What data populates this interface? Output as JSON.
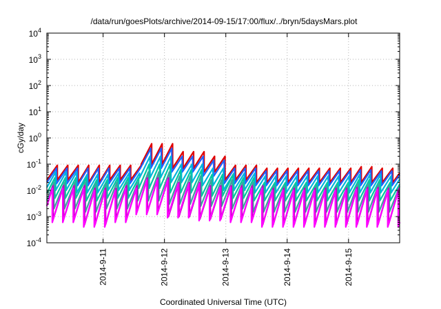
{
  "chart_data": {
    "type": "line",
    "title": "/data/run/goesPlots/archive/2014-09-15/17:00/flux/../bryn/5daysMars.plot",
    "xlabel": "Coordinated Universal Time (UTC)",
    "ylabel": "cGy/day",
    "yscale": "log",
    "grid": true,
    "legend": "none",
    "xlim": [
      "2014-09-10 02:00",
      "2014-09-15 20:00"
    ],
    "ylim": [
      0.0001,
      10000
    ],
    "y_ticks": [
      {
        "base": "10",
        "exp": "-4"
      },
      {
        "base": "10",
        "exp": "-3"
      },
      {
        "base": "10",
        "exp": "-2"
      },
      {
        "base": "10",
        "exp": "-1"
      },
      {
        "base": "10",
        "exp": "0"
      },
      {
        "base": "10",
        "exp": "1"
      },
      {
        "base": "10",
        "exp": "2"
      },
      {
        "base": "10",
        "exp": "3"
      },
      {
        "base": "10",
        "exp": "4"
      }
    ],
    "x_ticks": [
      "2014-9-11",
      "2014-9-12",
      "2014-9-13",
      "2014-9-14",
      "2014-9-15"
    ],
    "sawtooth_period_hours": 4.1,
    "series": [
      {
        "color": "#e00000",
        "peaks": [
          0.09,
          0.09,
          0.09,
          0.6,
          0.3,
          0.2,
          0.09,
          0.07,
          0.07,
          0.07,
          0.08,
          0.07
        ],
        "troughs": [
          0.025,
          0.02,
          0.025,
          0.1,
          0.07,
          0.05,
          0.025,
          0.02,
          0.02,
          0.02,
          0.02,
          0.02
        ]
      },
      {
        "color": "#2060ff",
        "peaks": [
          0.07,
          0.07,
          0.07,
          0.4,
          0.2,
          0.14,
          0.07,
          0.055,
          0.055,
          0.055,
          0.06,
          0.055
        ],
        "troughs": [
          0.018,
          0.015,
          0.018,
          0.07,
          0.05,
          0.035,
          0.018,
          0.015,
          0.015,
          0.015,
          0.015,
          0.015
        ]
      },
      {
        "color": "#00b4dc",
        "peaks": [
          0.05,
          0.04,
          0.045,
          0.2,
          0.1,
          0.07,
          0.045,
          0.035,
          0.035,
          0.035,
          0.04,
          0.035
        ],
        "troughs": [
          0.01,
          0.008,
          0.01,
          0.03,
          0.02,
          0.015,
          0.01,
          0.008,
          0.008,
          0.008,
          0.008,
          0.008
        ]
      },
      {
        "color": "#00c8a0",
        "peaks": [
          0.03,
          0.025,
          0.03,
          0.1,
          0.06,
          0.04,
          0.03,
          0.02,
          0.02,
          0.02,
          0.025,
          0.02
        ],
        "troughs": [
          0.005,
          0.004,
          0.005,
          0.012,
          0.008,
          0.006,
          0.005,
          0.004,
          0.004,
          0.004,
          0.004,
          0.004
        ]
      },
      {
        "color": "#40a0a0",
        "peaks": [
          0.02,
          0.018,
          0.02,
          0.05,
          0.035,
          0.025,
          0.02,
          0.015,
          0.015,
          0.015,
          0.018,
          0.015
        ],
        "troughs": [
          0.002,
          0.0015,
          0.002,
          0.004,
          0.003,
          0.0025,
          0.002,
          0.0015,
          0.0015,
          0.0015,
          0.0015,
          0.0015
        ]
      },
      {
        "color": "#c000c0",
        "peaks": [
          0.015,
          0.012,
          0.015,
          0.03,
          0.02,
          0.015,
          0.015,
          0.012,
          0.012,
          0.012,
          0.013,
          0.012
        ],
        "troughs": [
          0.0008,
          0.0005,
          0.0008,
          0.0015,
          0.001,
          0.0008,
          0.0008,
          0.0005,
          0.0005,
          0.0005,
          0.0005,
          0.0005
        ]
      },
      {
        "color": "#ff00ff",
        "peaks": [
          0.012,
          0.01,
          0.012,
          0.025,
          0.018,
          0.013,
          0.012,
          0.01,
          0.01,
          0.01,
          0.011,
          0.01
        ],
        "troughs": [
          0.0006,
          0.0004,
          0.0006,
          0.0012,
          0.0009,
          0.0007,
          0.0006,
          0.0004,
          0.0004,
          0.0004,
          0.0004,
          0.0004
        ]
      }
    ]
  }
}
